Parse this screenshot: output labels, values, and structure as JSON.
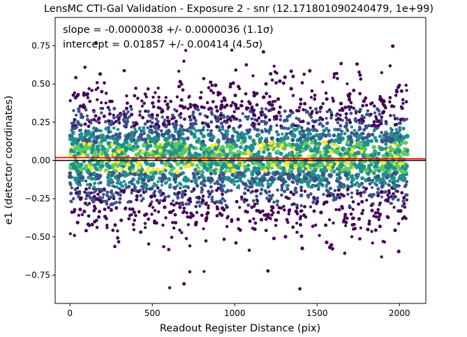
{
  "chart_data": {
    "type": "scatter",
    "title": "LensMC CTI-Gal Validation - Exposure 2 - snr (12.171801090240479, 1e+99)",
    "xlabel": "Readout Register Distance (pix)",
    "ylabel": "e1 (detector coordinates)",
    "xlim": [
      -90,
      2160
    ],
    "ylim": [
      -0.935,
      0.935
    ],
    "x_ticks": [
      0,
      500,
      1000,
      1500,
      2000
    ],
    "y_ticks": [
      -0.75,
      -0.5,
      -0.25,
      0.0,
      0.25,
      0.5,
      0.75
    ],
    "x_tick_labels": [
      "0",
      "500",
      "1000",
      "1500",
      "2000"
    ],
    "y_tick_labels": [
      "−0.75",
      "−0.50",
      "−0.25",
      "0.00",
      "0.25",
      "0.50",
      "0.75"
    ],
    "annotations": [
      "slope = -0.0000038 +/- 0.0000036 (1.1σ)",
      "intercept = 0.01857 +/- 0.00414 (4.5σ)"
    ],
    "fit_line": {
      "slope": -3.8e-06,
      "intercept": 0.01857,
      "color": "#ff0000"
    },
    "zero_line": {
      "y": 0.0,
      "color": "#000000"
    },
    "series": [
      {
        "x_range": [
          0,
          2048
        ],
        "y_center": 0.02,
        "y_spread": 0.22,
        "color_scale": "viridis",
        "colors": [
          "#440154",
          "#3b528b",
          "#21918c",
          "#5ec962",
          "#fde725"
        ]
      }
    ],
    "grid": false
  }
}
